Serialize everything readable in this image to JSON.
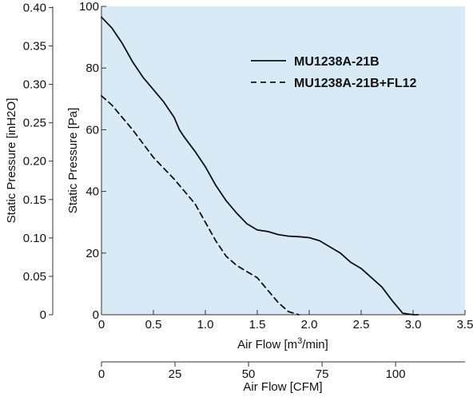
{
  "chart_data": {
    "type": "line",
    "title": "",
    "xlabel_prefix": "Air Flow [m",
    "xlabel_sup": "3",
    "xlabel_suffix": "/min]",
    "xlim": [
      0,
      3.5
    ],
    "xticks": [
      0,
      0.5,
      1.0,
      1.5,
      2.0,
      2.5,
      3.0,
      3.5
    ],
    "xtick_labels": [
      "0",
      "0.5",
      "1.0",
      "1.5",
      "2.0",
      "2.5",
      "3.0",
      "3.5"
    ],
    "ylabel": "Static Pressure [Pa]",
    "ylim": [
      0,
      100
    ],
    "yticks": [
      0,
      20,
      40,
      60,
      80,
      100
    ],
    "ytick_labels": [
      "0",
      "20",
      "40",
      "60",
      "80",
      "100"
    ],
    "ylabel2": "Static Pressure [inH2O]",
    "ylim2": [
      0,
      0.4015
    ],
    "yticks2": [
      0,
      0.05,
      0.1,
      0.15,
      0.2,
      0.25,
      0.3,
      0.35,
      0.4
    ],
    "ytick_labels2": [
      "0",
      "0.05",
      "0.10",
      "0.15",
      "0.20",
      "0.25",
      "0.30",
      "0.35",
      "0.40"
    ],
    "xlabel2": "Air Flow [CFM]",
    "xlim2": [
      0,
      123.6
    ],
    "xticks2": [
      0,
      25,
      50,
      75,
      100
    ],
    "xtick_labels2": [
      "0",
      "25",
      "50",
      "75",
      "100"
    ],
    "grid": false,
    "plot_background": "#d9eaf7",
    "legend_position": "top-right",
    "series": [
      {
        "name": "MU1238A-21B",
        "style": "solid",
        "color": "#111111",
        "x": [
          0,
          0.1,
          0.2,
          0.3,
          0.4,
          0.5,
          0.6,
          0.7,
          0.75,
          0.8,
          0.9,
          1.0,
          1.1,
          1.2,
          1.3,
          1.4,
          1.5,
          1.6,
          1.7,
          1.8,
          1.9,
          2.0,
          2.1,
          2.2,
          2.3,
          2.4,
          2.5,
          2.6,
          2.7,
          2.8,
          2.9,
          3.0,
          3.05
        ],
        "y": [
          96.5,
          93,
          88,
          82,
          77,
          73,
          69,
          64,
          60,
          57.5,
          53,
          48,
          42,
          37,
          33,
          29.5,
          27.5,
          27,
          26,
          25.5,
          25.3,
          25,
          24,
          22,
          20,
          17,
          15,
          12,
          9,
          4.5,
          0.5,
          0,
          0
        ]
      },
      {
        "name": "MU1238A-21B+FL12",
        "style": "dashed",
        "color": "#111111",
        "x": [
          0,
          0.1,
          0.2,
          0.3,
          0.4,
          0.5,
          0.6,
          0.7,
          0.8,
          0.9,
          1.0,
          1.1,
          1.2,
          1.3,
          1.4,
          1.5,
          1.6,
          1.7,
          1.8,
          1.9
        ],
        "y": [
          71,
          68,
          64,
          60,
          55.5,
          51,
          47.5,
          44,
          40,
          36,
          30,
          24,
          19,
          16,
          14,
          12,
          8,
          4,
          1,
          0
        ]
      }
    ]
  }
}
